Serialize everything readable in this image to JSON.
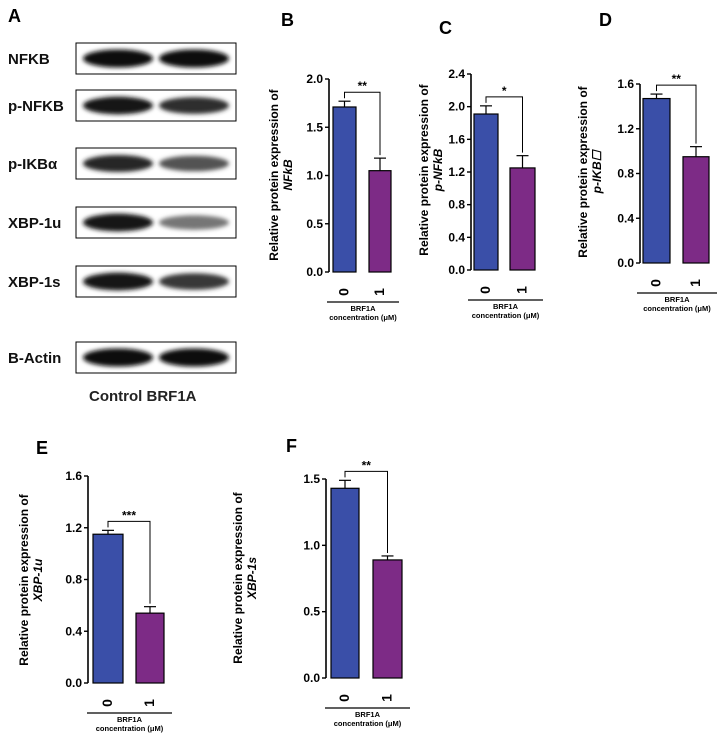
{
  "blot_panel": {
    "letter": "A",
    "labels": [
      "NFKB",
      "p-NFKB",
      "p-IKBα",
      "XBP-1u",
      "XBP-1s",
      "B-Actin"
    ],
    "lane_intensity": [
      [
        1.0,
        1.0
      ],
      [
        0.95,
        0.8
      ],
      [
        0.85,
        0.6
      ],
      [
        0.95,
        0.4
      ],
      [
        0.95,
        0.75
      ],
      [
        1.0,
        1.0
      ]
    ],
    "sample_label": "Control BRF1A"
  },
  "chart_data": [
    {
      "panel": "B",
      "type": "bar",
      "categories": [
        "0",
        "1"
      ],
      "values": [
        1.71,
        1.05
      ],
      "errors": [
        0.06,
        0.13
      ],
      "ylabel": "Relative protein expression of",
      "ylabel_gene": "NFkB",
      "xlabel": [
        "BRF1A",
        "concentration (μM)"
      ],
      "ylim": [
        0,
        2.0
      ],
      "yticks": [
        "0.0",
        "0.5",
        "1.0",
        "1.5",
        "2.0"
      ],
      "significance": "**",
      "colors": [
        "#3a4fa8",
        "#7d2b86"
      ]
    },
    {
      "panel": "C",
      "type": "bar",
      "categories": [
        "0",
        "1"
      ],
      "values": [
        1.91,
        1.25
      ],
      "errors": [
        0.1,
        0.15
      ],
      "ylabel": "Relative protein expression of",
      "ylabel_gene": "p-NFkB",
      "xlabel": [
        "BRF1A",
        "concentration (μM)"
      ],
      "ylim": [
        0,
        2.4
      ],
      "yticks": [
        "0.0",
        "0.4",
        "0.8",
        "1.2",
        "1.6",
        "2.0",
        "2.4"
      ],
      "significance": "*",
      "colors": [
        "#3a4fa8",
        "#7d2b86"
      ]
    },
    {
      "panel": "D",
      "type": "bar",
      "categories": [
        "0",
        "1"
      ],
      "values": [
        1.47,
        0.95
      ],
      "errors": [
        0.04,
        0.09
      ],
      "ylabel": "Relative protein expression of",
      "ylabel_gene": "p-IKB☐",
      "xlabel": [
        "BRF1A",
        "concentration (μM)"
      ],
      "ylim": [
        0,
        1.6
      ],
      "yticks": [
        "0.0",
        "0.4",
        "0.8",
        "1.2",
        "1.6"
      ],
      "significance": "**",
      "colors": [
        "#3a4fa8",
        "#7d2b86"
      ]
    },
    {
      "panel": "E",
      "type": "bar",
      "categories": [
        "0",
        "1"
      ],
      "values": [
        1.15,
        0.54
      ],
      "errors": [
        0.03,
        0.05
      ],
      "ylabel": "Relative protein expression of",
      "ylabel_gene": "XBP-1u",
      "xlabel": [
        "BRF1A",
        "concentration (μM)"
      ],
      "ylim": [
        0,
        1.6
      ],
      "yticks": [
        "0.0",
        "0.4",
        "0.8",
        "1.2",
        "1.6"
      ],
      "significance": "***",
      "colors": [
        "#3a4fa8",
        "#7d2b86"
      ]
    },
    {
      "panel": "F",
      "type": "bar",
      "categories": [
        "0",
        "1"
      ],
      "values": [
        1.43,
        0.89
      ],
      "errors": [
        0.06,
        0.03
      ],
      "ylabel": "Relative protein expression of",
      "ylabel_gene": "XBP-1s",
      "xlabel": [
        "BRF1A",
        "concentration (μM)"
      ],
      "ylim": [
        0,
        1.5
      ],
      "yticks": [
        "0.0",
        "0.5",
        "1.0",
        "1.5"
      ],
      "significance": "**",
      "colors": [
        "#3a4fa8",
        "#7d2b86"
      ]
    }
  ]
}
